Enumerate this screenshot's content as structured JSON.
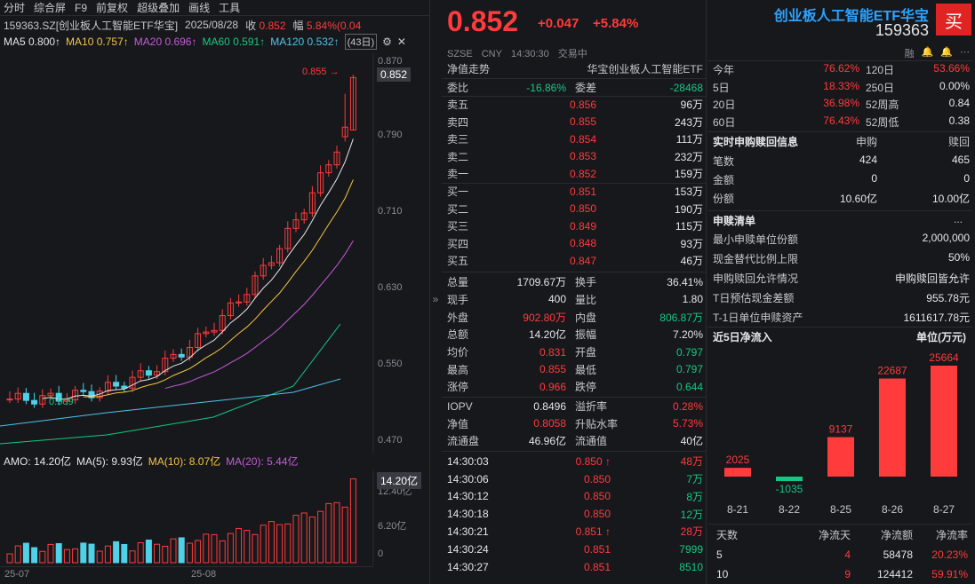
{
  "toolbar": {
    "items": [
      "分时",
      "综合屏",
      "F9",
      "前复权",
      "超级叠加",
      "画线",
      "工具"
    ]
  },
  "info": {
    "symbol": "159363.SZ[创业板人工智能ETF华宝]",
    "date": "2025/08/28",
    "close_label": "收",
    "close": "0.852",
    "amp_label": "幅",
    "amp": "5.84%(0.04"
  },
  "ma": {
    "ma5": "MA5 0.800↑",
    "ma10": "MA10 0.757↑",
    "ma20": "MA20 0.696↑",
    "ma60": "MA60 0.591↑",
    "ma120": "MA120 0.532↑",
    "period": "(43日)"
  },
  "kchart": {
    "yticks": [
      "0.870",
      "0.790",
      "0.710",
      "0.630",
      "0.550",
      "0.470"
    ],
    "high_label": "0.855",
    "low_label": "0.509",
    "price_tag": "0.852"
  },
  "amo": {
    "amo": "AMO: 14.20亿",
    "ma5": "MA(5): 9.93亿",
    "ma10": "MA(10): 8.07亿",
    "ma20": "MA(20): 5.44亿",
    "ticks": [
      "12.40亿",
      "6.20亿",
      "0"
    ],
    "tag": "14.20亿"
  },
  "xaxis": [
    "25-07",
    "25-08"
  ],
  "colors": {
    "up": "#ff3b3b",
    "down": "#16c784",
    "accent": "#2ca3ff"
  },
  "quote": {
    "price": "0.852",
    "change": "+0.047",
    "pct": "+5.84%",
    "meta": [
      "SZSE",
      "CNY",
      "14:30:30",
      "交易中"
    ]
  },
  "header": {
    "left": "净值走势",
    "right": "华宝创业板人工智能ETF"
  },
  "committee": {
    "wb_label": "委比",
    "wb": "-16.86%",
    "wc_label": "委差",
    "wc": "-28468"
  },
  "asks": [
    {
      "l": "卖五",
      "p": "0.856",
      "v": "96万"
    },
    {
      "l": "卖四",
      "p": "0.855",
      "v": "243万"
    },
    {
      "l": "卖三",
      "p": "0.854",
      "v": "111万"
    },
    {
      "l": "卖二",
      "p": "0.853",
      "v": "232万"
    },
    {
      "l": "卖一",
      "p": "0.852",
      "v": "159万"
    }
  ],
  "bids": [
    {
      "l": "买一",
      "p": "0.851",
      "v": "153万"
    },
    {
      "l": "买二",
      "p": "0.850",
      "v": "190万"
    },
    {
      "l": "买三",
      "p": "0.849",
      "v": "115万"
    },
    {
      "l": "买四",
      "p": "0.848",
      "v": "93万"
    },
    {
      "l": "买五",
      "p": "0.847",
      "v": "46万"
    }
  ],
  "stats": [
    {
      "a": "总量",
      "av": "1709.67万",
      "ac": "white",
      "b": "换手",
      "bv": "36.41%",
      "bc": "white"
    },
    {
      "a": "现手",
      "av": "400",
      "ac": "white",
      "b": "量比",
      "bv": "1.80",
      "bc": "white"
    },
    {
      "a": "外盘",
      "av": "902.80万",
      "ac": "red",
      "b": "内盘",
      "bv": "806.87万",
      "bc": "green"
    },
    {
      "a": "总额",
      "av": "14.20亿",
      "ac": "white",
      "b": "振幅",
      "bv": "7.20%",
      "bc": "white"
    },
    {
      "a": "均价",
      "av": "0.831",
      "ac": "red",
      "b": "开盘",
      "bv": "0.797",
      "bc": "green"
    },
    {
      "a": "最高",
      "av": "0.855",
      "ac": "red",
      "b": "最低",
      "bv": "0.797",
      "bc": "green"
    },
    {
      "a": "涨停",
      "av": "0.966",
      "ac": "red",
      "b": "跌停",
      "bv": "0.644",
      "bc": "green"
    }
  ],
  "stats2": [
    {
      "a": "IOPV",
      "av": "0.8496",
      "ac": "white",
      "b": "溢折率",
      "bv": "0.28%",
      "bc": "red"
    },
    {
      "a": "净值",
      "av": "0.8058",
      "ac": "red",
      "b": "升贴水率",
      "bv": "5.73%",
      "bc": "red"
    },
    {
      "a": "流通盘",
      "av": "46.96亿",
      "ac": "white",
      "b": "流通值",
      "bv": "40亿",
      "bc": "white"
    }
  ],
  "ticks": [
    {
      "t": "14:30:03",
      "p": "0.850",
      "up": true,
      "v": "48万",
      "vc": "red"
    },
    {
      "t": "14:30:06",
      "p": "0.850",
      "up": false,
      "v": "7万",
      "vc": "green"
    },
    {
      "t": "14:30:12",
      "p": "0.850",
      "up": false,
      "v": "8万",
      "vc": "green"
    },
    {
      "t": "14:30:18",
      "p": "0.850",
      "up": false,
      "v": "12万",
      "vc": "green"
    },
    {
      "t": "14:30:21",
      "p": "0.851",
      "up": true,
      "v": "28万",
      "vc": "red"
    },
    {
      "t": "14:30:24",
      "p": "0.851",
      "up": false,
      "v": "7999",
      "vc": "green"
    },
    {
      "t": "14:30:27",
      "p": "0.851",
      "up": false,
      "v": "8510",
      "vc": "green"
    }
  ],
  "fund": {
    "title": "创业板人工智能ETF华宝",
    "code": "159363",
    "buy": "买",
    "icons": [
      "融",
      "bell-icon",
      "bell-icon",
      "more-icon"
    ]
  },
  "perf": [
    {
      "a": "今年",
      "av": "76.62%",
      "ac": "red",
      "b": "120日",
      "bv": "53.66%",
      "bc": "red"
    },
    {
      "a": "5日",
      "av": "18.33%",
      "ac": "red",
      "b": "250日",
      "bv": "0.00%",
      "bc": "white"
    },
    {
      "a": "20日",
      "av": "36.98%",
      "ac": "red",
      "b": "52周高",
      "bv": "0.84",
      "bc": "white"
    },
    {
      "a": "60日",
      "av": "76.43%",
      "ac": "red",
      "b": "52周低",
      "bv": "0.38",
      "bc": "white"
    }
  ],
  "subredeem": {
    "title": "实时申购赎回信息",
    "h1": "申购",
    "h2": "赎回",
    "rows": [
      {
        "l": "笔数",
        "a": "424",
        "b": "465"
      },
      {
        "l": "金额",
        "a": "0",
        "b": "0"
      },
      {
        "l": "份额",
        "a": "10.60亿",
        "b": "10.00亿"
      }
    ]
  },
  "list": {
    "title": "申赎清单",
    "more": "...",
    "rows": [
      {
        "l": "最小申赎单位份额",
        "v": "2,000,000"
      },
      {
        "l": "现金替代比例上限",
        "v": "50%"
      },
      {
        "l": "申购赎回允许情况",
        "v": "申购赎回皆允许"
      },
      {
        "l": "T日预估现金差额",
        "v": "955.78元"
      },
      {
        "l": "T-1日单位申赎资产",
        "v": "1611617.78元"
      }
    ]
  },
  "flow": {
    "title": "近5日净流入",
    "unit": "单位(万元)"
  },
  "chart_data": {
    "type": "bar",
    "categories": [
      "8-21",
      "8-22",
      "8-25",
      "8-26",
      "8-27"
    ],
    "values": [
      2025,
      -1035,
      9137,
      22687,
      25664
    ]
  },
  "flowtable": {
    "headers": [
      "天数",
      "净流天",
      "净流额",
      "净流率"
    ],
    "rows": [
      {
        "d": "5",
        "n": "4",
        "a": "58478",
        "r": "20.23%"
      },
      {
        "d": "10",
        "n": "9",
        "a": "124412",
        "r": "59.91%"
      }
    ]
  }
}
